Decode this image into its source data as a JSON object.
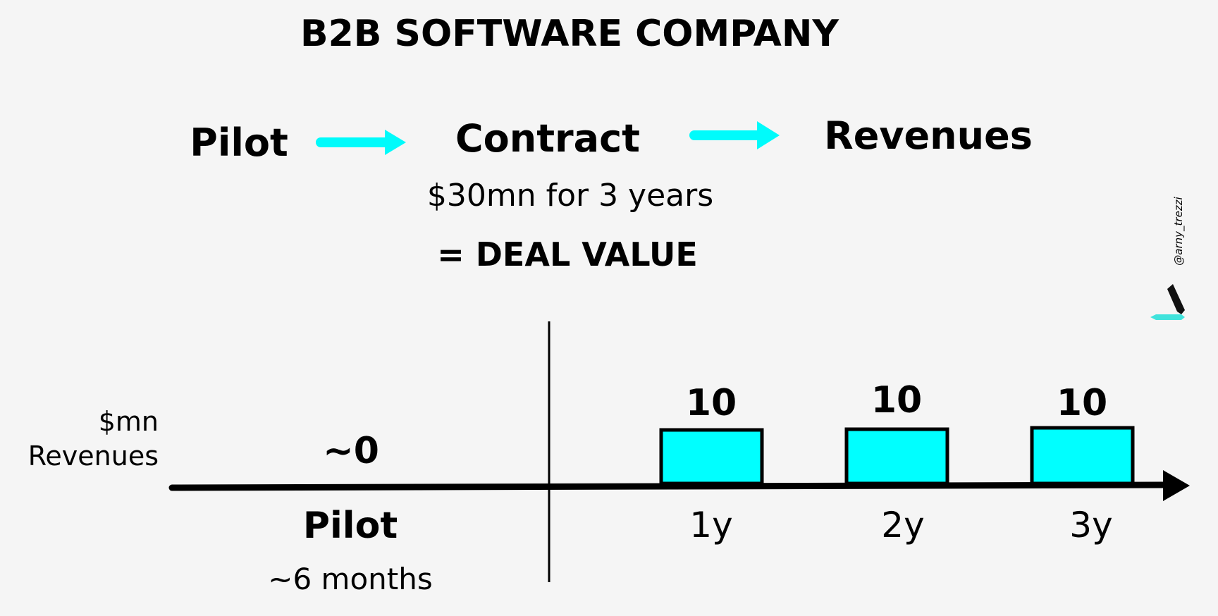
{
  "title": "B2B SOFTWARE COMPANY",
  "flow": {
    "steps": [
      "Pilot",
      "Contract",
      "Revenues"
    ]
  },
  "deal": {
    "terms": "$30mn for 3 years",
    "value_label": "= DEAL VALUE"
  },
  "watermark": "@arny_trezzi",
  "colors": {
    "accent": "#00fbfb",
    "bar_fill": "#00ffff",
    "background": "#f5f5f5",
    "text": "#000000"
  },
  "chart_data": {
    "type": "bar",
    "unit_label": "$mn",
    "ylabel": "Revenues",
    "pilot": {
      "value_label": "~0",
      "label": "Pilot",
      "duration": "~6 months"
    },
    "categories": [
      "1y",
      "2y",
      "3y"
    ],
    "values": [
      10,
      10,
      10
    ],
    "value_labels": [
      "10",
      "10",
      "10"
    ]
  }
}
